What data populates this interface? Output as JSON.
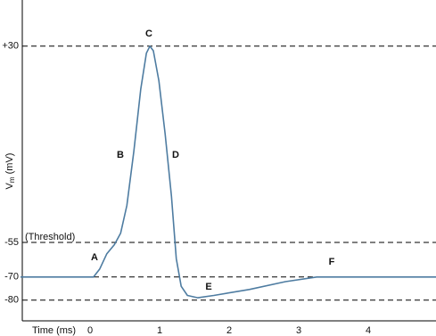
{
  "chart_data": {
    "type": "line",
    "y_label_parts": [
      "V",
      "m",
      " (mV)"
    ],
    "x_label": "Time (ms)",
    "x": [
      -1,
      0.05,
      0.14,
      0.24,
      0.35,
      0.44,
      0.53,
      0.63,
      0.73,
      0.81,
      0.86,
      0.91,
      0.99,
      1.08,
      1.17,
      1.24,
      1.31,
      1.4,
      1.55,
      1.78,
      2.29,
      2.81,
      3.26,
      3.83,
      5
    ],
    "series": [
      {
        "color": "#4e7ca1",
        "values": [
          -70,
          -70,
          -66.5,
          -60,
          -56,
          -51,
          -39,
          -15.6,
          11.5,
          27,
          30,
          28,
          15,
          -8,
          -35,
          -62,
          -74,
          -78,
          -79,
          -78,
          -75.4,
          -72,
          -70,
          -70,
          -70
        ]
      }
    ],
    "xlim": [
      -1,
      5
    ],
    "ylim": [
      -90,
      50
    ],
    "xticks": [
      0,
      1,
      2,
      3,
      4
    ],
    "yticks": [
      {
        "value": 30,
        "label": "+30"
      },
      -55,
      -70,
      -80
    ],
    "grid": true,
    "grid_style": "dashed",
    "threshold_label": "(Threshold)",
    "annotations": [
      "A",
      "B",
      "C",
      "D",
      "E",
      "F"
    ]
  }
}
